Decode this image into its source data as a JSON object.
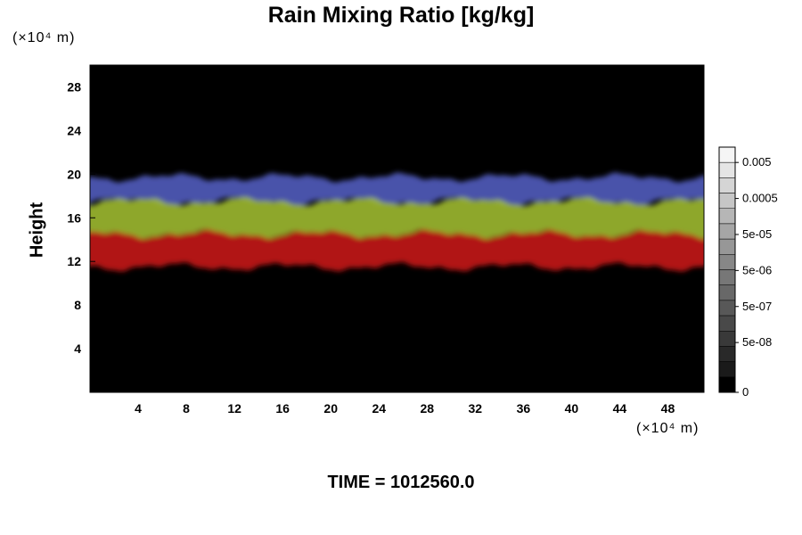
{
  "chart_data": {
    "type": "heatmap",
    "title": "Rain Mixing Ratio [kg/kg]",
    "ylabel": "Height",
    "xlabel": "",
    "x_unit": "(×10⁴ m)",
    "y_unit": "(×10⁴ m)",
    "xlim": [
      0,
      51
    ],
    "ylim": [
      0,
      30
    ],
    "x_ticks": [
      "4",
      "8",
      "12",
      "16",
      "20",
      "24",
      "28",
      "32",
      "36",
      "40",
      "44",
      "48"
    ],
    "y_ticks": [
      "4",
      "8",
      "12",
      "16",
      "20",
      "24",
      "28"
    ],
    "x_tick_values": [
      4,
      8,
      12,
      16,
      20,
      24,
      28,
      32,
      36,
      40,
      44,
      48
    ],
    "y_tick_values": [
      4,
      8,
      12,
      16,
      20,
      24,
      28
    ],
    "colorbar": {
      "labels": [
        "0.005",
        "0.0005",
        "5e-05",
        "5e-06",
        "5e-07",
        "5e-08",
        "0"
      ],
      "levels": 16
    },
    "bands": [
      {
        "name": "blue",
        "color": "#5560c8",
        "y_range": [
          17.5,
          19.7
        ]
      },
      {
        "name": "yellow-green",
        "color": "#a7c431",
        "y_range": [
          14.5,
          17.5
        ]
      },
      {
        "name": "red",
        "color": "#d01616",
        "y_range": [
          11.5,
          14.5
        ]
      }
    ],
    "background_color": "#000000"
  },
  "footer": {
    "time_label": "TIME = 1012560.0"
  }
}
